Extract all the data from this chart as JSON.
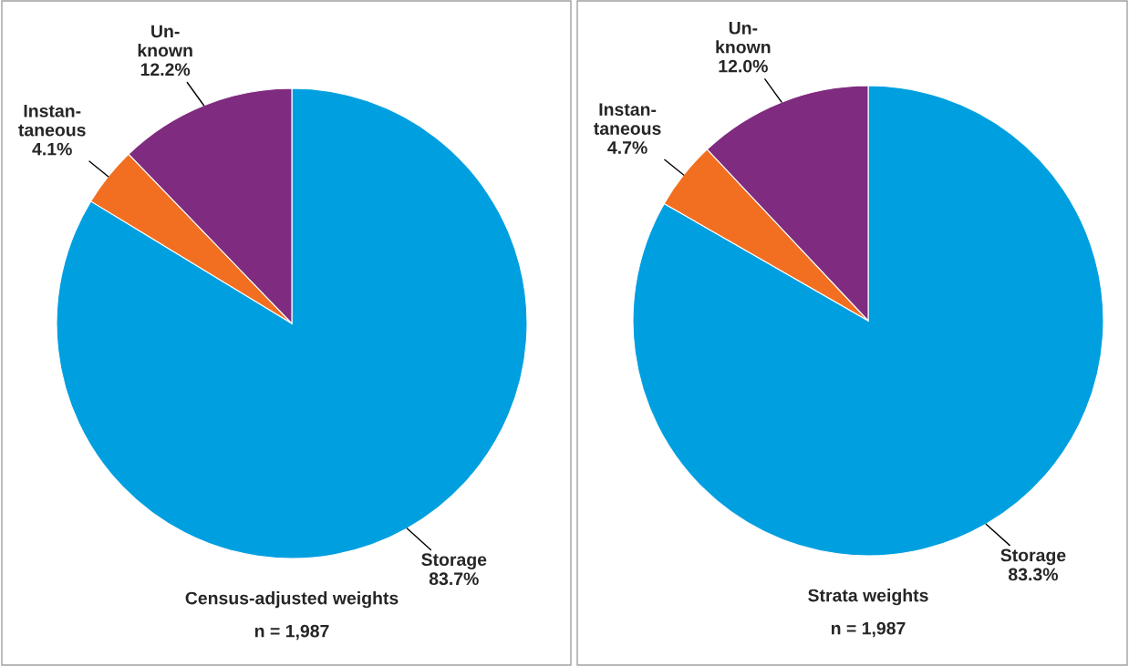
{
  "chart_data": [
    {
      "type": "pie",
      "title": "Census-adjusted weights",
      "subtitle": "n = 1,987",
      "categories": [
        "Storage",
        "Instan-\ntaneous",
        "Un-\nknown"
      ],
      "values": [
        83.7,
        4.1,
        12.2
      ],
      "value_labels": [
        "83.7%",
        "4.1%",
        "12.2%"
      ],
      "colors": [
        "#009fe0",
        "#f26f21",
        "#7f2b7f"
      ]
    },
    {
      "type": "pie",
      "title": "Strata weights",
      "subtitle": "n = 1,987",
      "categories": [
        "Storage",
        "Instan-\ntaneous",
        "Un-\nknown"
      ],
      "values": [
        83.3,
        4.7,
        12.0
      ],
      "value_labels": [
        "83.3%",
        "4.7%",
        "12.0%"
      ],
      "colors": [
        "#009fe0",
        "#f26f21",
        "#7f2b7f"
      ]
    }
  ]
}
